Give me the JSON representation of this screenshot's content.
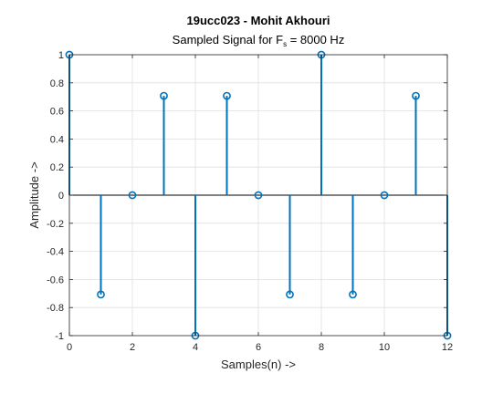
{
  "chart_data": {
    "type": "stem",
    "title": "19ucc023 - Mohit Akhouri",
    "subtitle": {
      "prefix": "Sampled Signal for F",
      "subscript": "s",
      "suffix": " = 8000 Hz"
    },
    "xlabel": "Samples(n) ->",
    "ylabel": "Amplitude ->",
    "xlim": [
      0,
      12
    ],
    "ylim": [
      -1,
      1
    ],
    "xticks": [
      0,
      2,
      4,
      6,
      8,
      10,
      12
    ],
    "xtick_labels": [
      "0",
      "2",
      "4",
      "6",
      "8",
      "10",
      "12"
    ],
    "yticks": [
      -1,
      -0.8,
      -0.6,
      -0.4,
      -0.2,
      0,
      0.2,
      0.4,
      0.6,
      0.8,
      1
    ],
    "ytick_labels": [
      "-1",
      "-0.8",
      "-0.6",
      "-0.4",
      "-0.2",
      "0",
      "0.2",
      "0.4",
      "0.6",
      "0.8",
      "1"
    ],
    "grid": true,
    "series": [
      {
        "x": [
          0,
          1,
          2,
          3,
          4,
          5,
          6,
          7,
          8,
          9,
          10,
          11,
          12
        ],
        "y": [
          1,
          -0.7071,
          0,
          0.7071,
          -1,
          0.7071,
          0,
          -0.7071,
          1,
          -0.7071,
          0,
          0.7071,
          -1
        ],
        "color": "#0072BD"
      }
    ]
  }
}
